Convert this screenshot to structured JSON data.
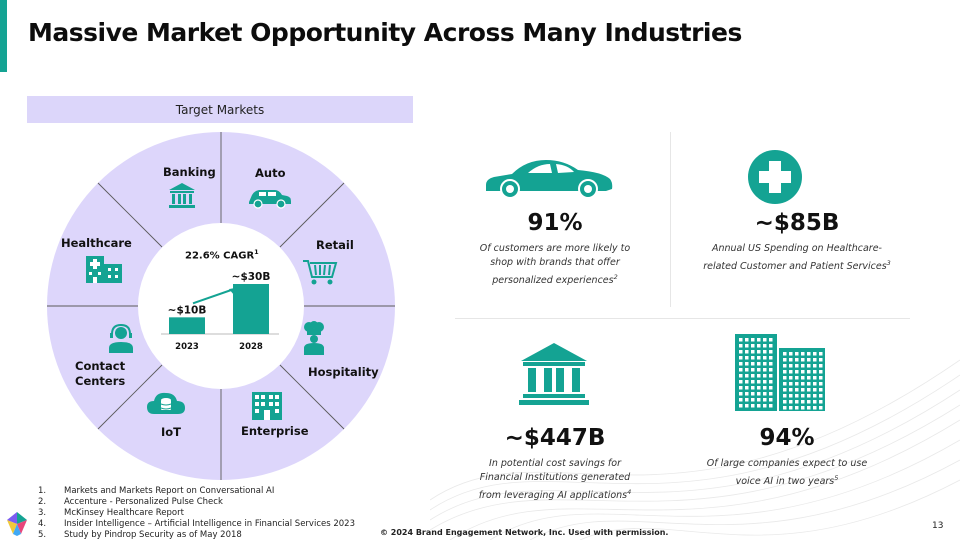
{
  "slide": {
    "title": "Massive Market Opportunity Across Many Industries",
    "page_number": "13",
    "copyright": "© 2024 Brand Engagement Network, Inc. Used with permission."
  },
  "target_markets": {
    "header": "Target Markets",
    "segments": [
      {
        "label": "Banking",
        "icon": "bank-icon"
      },
      {
        "label": "Auto",
        "icon": "car-icon"
      },
      {
        "label": "Retail",
        "icon": "shopping-cart-icon"
      },
      {
        "label": "Hospitality",
        "icon": "chef-icon"
      },
      {
        "label": "Enterprise",
        "icon": "office-building-icon"
      },
      {
        "label": "IoT",
        "icon": "cloud-database-icon"
      },
      {
        "label": "Contact",
        "label2": "Centers",
        "icon": "headset-agent-icon"
      },
      {
        "label": "Healthcare",
        "icon": "hospital-icon"
      }
    ],
    "center_chart": {
      "cagr_label": "22.6% CAGR",
      "cagr_sup": "1"
    }
  },
  "chart_data": {
    "type": "bar",
    "categories": [
      "2023",
      "2028"
    ],
    "values": [
      10,
      30
    ],
    "value_labels": [
      "~$10B",
      "~$30B"
    ],
    "annotation": "22.6% CAGR"
  },
  "stats": [
    {
      "value": "91%",
      "desc": "Of customers are more likely to shop with brands that offer personalized experiences",
      "sup": "2",
      "icon": "car-icon"
    },
    {
      "value": "~$85B",
      "desc": "Annual US Spending on Healthcare-related Customer and Patient Services",
      "sup": "3",
      "icon": "medical-cross-icon"
    },
    {
      "value": "~$447B",
      "desc": "In potential cost savings for Financial Institutions generated from leveraging AI applications",
      "sup": "4",
      "icon": "bank-icon"
    },
    {
      "value": "94%",
      "desc": "Of large companies expect to use voice AI in two years",
      "sup": "5",
      "icon": "office-buildings-icon"
    }
  ],
  "footnotes": [
    {
      "num": "1.",
      "text": "Markets and Markets Report on Conversational AI"
    },
    {
      "num": "2.",
      "text": "Accenture - Personalized Pulse Check"
    },
    {
      "num": "3.",
      "text": "McKinsey Healthcare Report"
    },
    {
      "num": "4.",
      "text": "Insider Intelligence – Artificial Intelligence in Financial Services 2023"
    },
    {
      "num": "5.",
      "text": "Study by Pindrop Security as of May 2018"
    }
  ],
  "colors": {
    "accent": "#14a393",
    "wheel_fill": "#ddd6fb",
    "bar": "#14a393"
  }
}
